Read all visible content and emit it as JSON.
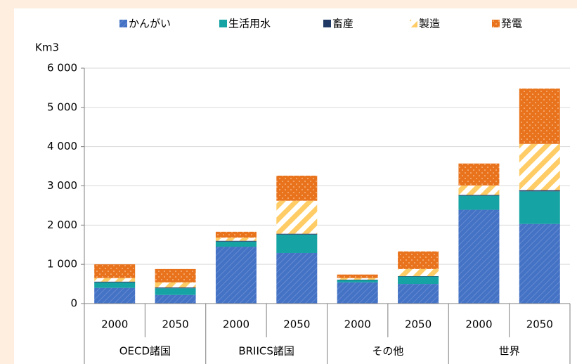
{
  "chart_data": {
    "type": "stacked-bar",
    "y_label": "Km3",
    "categories": [
      "2000",
      "2050",
      "2000",
      "2050",
      "2000",
      "2050",
      "2000",
      "2050"
    ],
    "groups": [
      "OECD諸国",
      "BRIICS諸国",
      "その他",
      "世界"
    ],
    "series": [
      {
        "name": "かんがい",
        "color": "#4472c4",
        "pattern": "hatch",
        "values": [
          400,
          220,
          1450,
          1290,
          540,
          500,
          2390,
          2030
        ]
      },
      {
        "name": "生活用水",
        "color": "#15a3a3",
        "pattern": "solid",
        "values": [
          140,
          170,
          130,
          470,
          60,
          190,
          360,
          830
        ]
      },
      {
        "name": "畜産",
        "color": "#1f3864",
        "pattern": "solid",
        "values": [
          20,
          20,
          20,
          20,
          10,
          10,
          20,
          30
        ]
      },
      {
        "name": "製造",
        "color": "#ffcc66",
        "pattern": "stripes",
        "values": [
          90,
          130,
          80,
          840,
          40,
          180,
          240,
          1180
        ]
      },
      {
        "name": "発電",
        "color": "#e8731c",
        "pattern": "dots",
        "values": [
          350,
          340,
          150,
          640,
          90,
          450,
          560,
          1410
        ]
      }
    ],
    "ylim": [
      0,
      6000
    ],
    "yticks": [
      0,
      {
        "value": 1000,
        "label": "1 000"
      },
      {
        "value": 2000,
        "label": "2 000"
      },
      {
        "value": 3000,
        "label": "3 000"
      },
      {
        "value": 4000,
        "label": "4 000"
      },
      {
        "value": 5000,
        "label": "5 000"
      },
      {
        "value": 6000,
        "label": "6 000"
      }
    ],
    "grid": true
  }
}
